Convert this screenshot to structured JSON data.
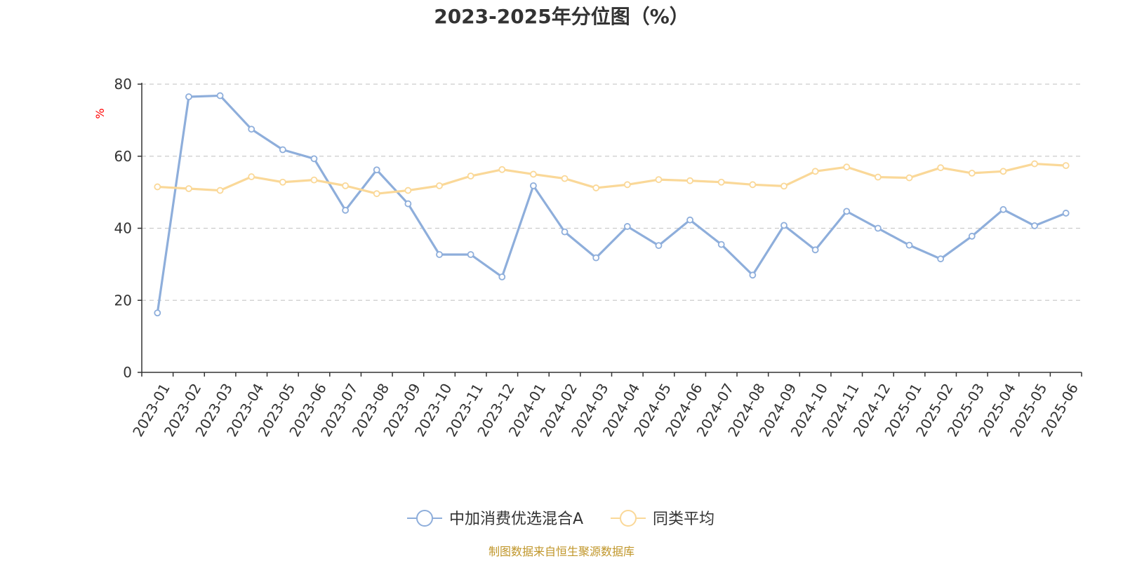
{
  "chart_data": {
    "type": "line",
    "title": "2023-2025年分位图（%）",
    "ylabel": "%",
    "ylim": [
      0,
      80
    ],
    "yticks": [
      0,
      20,
      40,
      60,
      80
    ],
    "grid": true,
    "legend_position": "bottom-center",
    "categories": [
      "2023-01",
      "2023-02",
      "2023-03",
      "2023-04",
      "2023-05",
      "2023-06",
      "2023-07",
      "2023-08",
      "2023-09",
      "2023-10",
      "2023-11",
      "2023-12",
      "2024-01",
      "2024-02",
      "2024-03",
      "2024-04",
      "2024-05",
      "2024-06",
      "2024-07",
      "2024-08",
      "2024-09",
      "2024-10",
      "2024-11",
      "2024-12",
      "2025-01",
      "2025-02",
      "2025-03",
      "2025-04",
      "2025-05",
      "2025-06"
    ],
    "series": [
      {
        "name": "中加消费优选混合A",
        "color": "#8eaedb",
        "values": [
          16.5,
          76.5,
          76.8,
          67.5,
          61.8,
          59.3,
          45.0,
          56.2,
          46.8,
          32.7,
          32.7,
          26.5,
          51.8,
          39.0,
          31.8,
          40.5,
          35.2,
          42.3,
          35.5,
          27.0,
          40.8,
          34.0,
          44.7,
          40.0,
          35.3,
          31.5,
          37.8,
          45.2,
          40.7,
          44.2
        ]
      },
      {
        "name": "同类平均",
        "color": "#fad898",
        "values": [
          51.5,
          51.0,
          50.5,
          54.3,
          52.8,
          53.4,
          51.8,
          49.6,
          50.5,
          51.8,
          54.5,
          56.3,
          55.0,
          53.8,
          51.2,
          52.1,
          53.5,
          53.2,
          52.8,
          52.1,
          51.7,
          55.8,
          57.0,
          54.2,
          54.0,
          56.8,
          55.3,
          55.8,
          57.9,
          57.4
        ]
      }
    ]
  },
  "source_text": "制图数据来自恒生聚源数据库"
}
